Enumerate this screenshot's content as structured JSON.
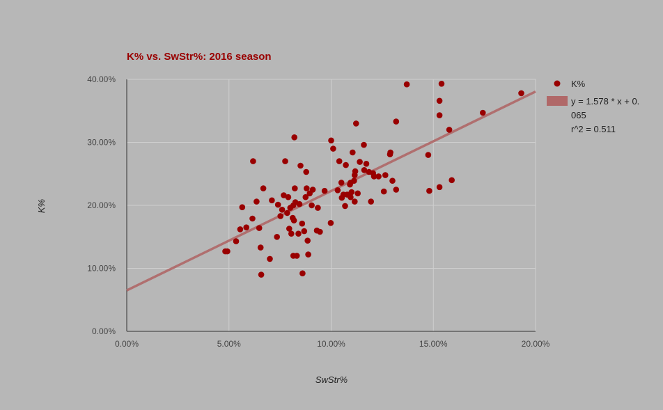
{
  "chart_data": {
    "type": "scatter",
    "title": "K% vs. SwStr%: 2016 season",
    "xlabel": "SwStr%",
    "ylabel": "K%",
    "xlim": [
      0,
      0.2
    ],
    "ylim": [
      0,
      0.4
    ],
    "x_ticks": [
      0,
      0.05,
      0.1,
      0.15,
      0.2
    ],
    "y_ticks": [
      0,
      0.1,
      0.2,
      0.3,
      0.4
    ],
    "x_tick_labels": [
      "0.00%",
      "5.00%",
      "10.00%",
      "15.00%",
      "20.00%"
    ],
    "y_tick_labels": [
      "0.00%",
      "10.00%",
      "20.00%",
      "30.00%",
      "40.00%"
    ],
    "grid": true,
    "legend_position": "right",
    "colors": {
      "points": "#990000",
      "trendline": "#b06868",
      "background": "#b7b7b7"
    },
    "series": [
      {
        "name": "K%",
        "points": [
          [
            0.0482,
            0.127
          ],
          [
            0.0492,
            0.127
          ],
          [
            0.0535,
            0.143
          ],
          [
            0.0555,
            0.162
          ],
          [
            0.0565,
            0.197
          ],
          [
            0.0585,
            0.165
          ],
          [
            0.0615,
            0.179
          ],
          [
            0.0618,
            0.27
          ],
          [
            0.0635,
            0.206
          ],
          [
            0.0648,
            0.164
          ],
          [
            0.0655,
            0.133
          ],
          [
            0.0658,
            0.09
          ],
          [
            0.0668,
            0.227
          ],
          [
            0.07,
            0.115
          ],
          [
            0.071,
            0.208
          ],
          [
            0.0735,
            0.15
          ],
          [
            0.074,
            0.201
          ],
          [
            0.0752,
            0.183
          ],
          [
            0.076,
            0.193
          ],
          [
            0.0768,
            0.216
          ],
          [
            0.0775,
            0.27
          ],
          [
            0.0785,
            0.188
          ],
          [
            0.079,
            0.213
          ],
          [
            0.0795,
            0.163
          ],
          [
            0.08,
            0.196
          ],
          [
            0.0805,
            0.155
          ],
          [
            0.0812,
            0.18
          ],
          [
            0.0815,
            0.2
          ],
          [
            0.0815,
            0.12
          ],
          [
            0.0818,
            0.176
          ],
          [
            0.082,
            0.308
          ],
          [
            0.0822,
            0.227
          ],
          [
            0.0825,
            0.205
          ],
          [
            0.0832,
            0.12
          ],
          [
            0.084,
            0.155
          ],
          [
            0.0845,
            0.202
          ],
          [
            0.085,
            0.263
          ],
          [
            0.0858,
            0.171
          ],
          [
            0.086,
            0.092
          ],
          [
            0.0868,
            0.159
          ],
          [
            0.0875,
            0.213
          ],
          [
            0.0878,
            0.253
          ],
          [
            0.088,
            0.227
          ],
          [
            0.0885,
            0.144
          ],
          [
            0.0888,
            0.122
          ],
          [
            0.0895,
            0.219
          ],
          [
            0.0905,
            0.2
          ],
          [
            0.091,
            0.225
          ],
          [
            0.093,
            0.16
          ],
          [
            0.0935,
            0.196
          ],
          [
            0.0945,
            0.158
          ],
          [
            0.0968,
            0.223
          ],
          [
            0.0998,
            0.172
          ],
          [
            0.1,
            0.303
          ],
          [
            0.101,
            0.29
          ],
          [
            0.1032,
            0.224
          ],
          [
            0.104,
            0.27
          ],
          [
            0.105,
            0.236
          ],
          [
            0.1052,
            0.212
          ],
          [
            0.106,
            0.217
          ],
          [
            0.1068,
            0.199
          ],
          [
            0.1072,
            0.264
          ],
          [
            0.1078,
            0.217
          ],
          [
            0.1092,
            0.233
          ],
          [
            0.1095,
            0.236
          ],
          [
            0.1095,
            0.213
          ],
          [
            0.11,
            0.221
          ],
          [
            0.1105,
            0.284
          ],
          [
            0.1112,
            0.239
          ],
          [
            0.1115,
            0.206
          ],
          [
            0.1115,
            0.248
          ],
          [
            0.1118,
            0.254
          ],
          [
            0.1122,
            0.33
          ],
          [
            0.113,
            0.219
          ],
          [
            0.114,
            0.269
          ],
          [
            0.116,
            0.296
          ],
          [
            0.1162,
            0.256
          ],
          [
            0.1172,
            0.266
          ],
          [
            0.1185,
            0.253
          ],
          [
            0.1195,
            0.206
          ],
          [
            0.1205,
            0.251
          ],
          [
            0.121,
            0.246
          ],
          [
            0.1232,
            0.246
          ],
          [
            0.1258,
            0.222
          ],
          [
            0.1265,
            0.248
          ],
          [
            0.1288,
            0.281
          ],
          [
            0.129,
            0.284
          ],
          [
            0.13,
            0.239
          ],
          [
            0.1318,
            0.225
          ],
          [
            0.1318,
            0.333
          ],
          [
            0.137,
            0.392
          ],
          [
            0.1475,
            0.28
          ],
          [
            0.148,
            0.223
          ],
          [
            0.153,
            0.229
          ],
          [
            0.153,
            0.366
          ],
          [
            0.153,
            0.343
          ],
          [
            0.154,
            0.393
          ],
          [
            0.1578,
            0.32
          ],
          [
            0.159,
            0.24
          ],
          [
            0.1742,
            0.347
          ],
          [
            0.193,
            0.378
          ]
        ]
      }
    ],
    "trendline": {
      "type": "linear",
      "slope": 1.578,
      "intercept": 0.065,
      "r2": 0.511
    },
    "legend": {
      "series_label": "K%",
      "trend_line1": "y = 1.578 * x + 0.",
      "trend_line2": "065",
      "trend_line3": "r^2 = 0.511"
    }
  }
}
